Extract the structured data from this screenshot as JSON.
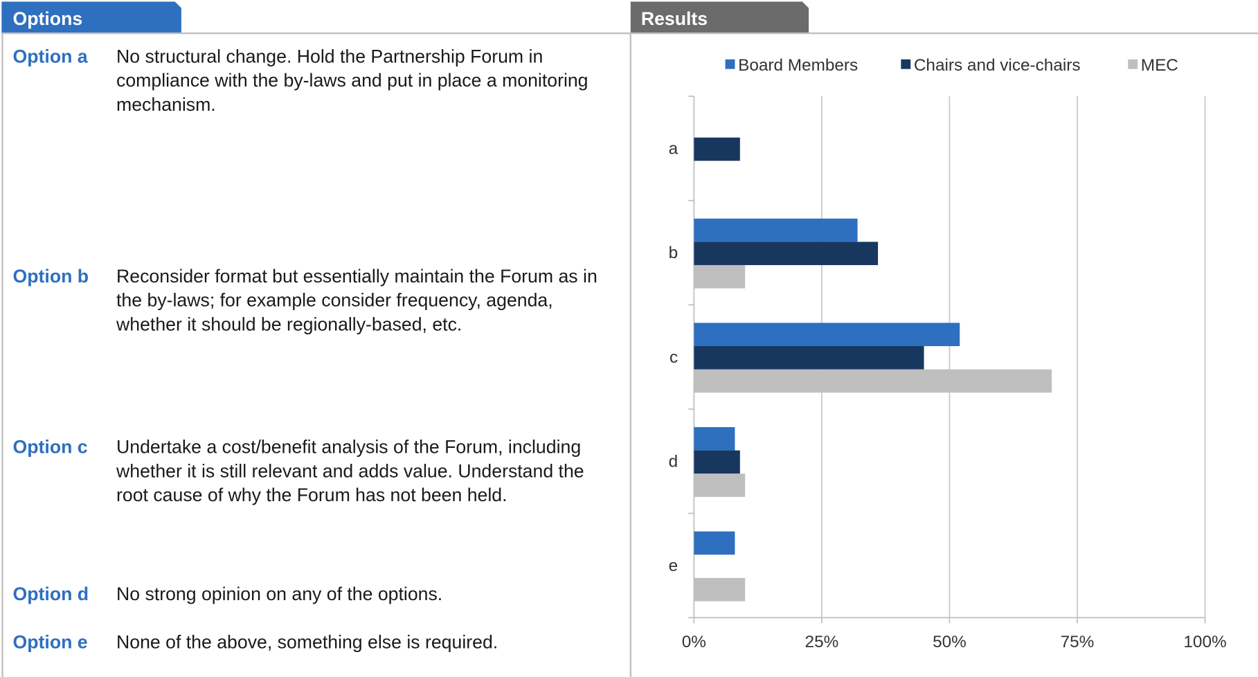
{
  "options_panel": {
    "title": "Options",
    "options": [
      {
        "label": "Option a",
        "text": "No structural change. Hold the Partnership Forum in compliance with the by-laws and put in place a monitoring mechanism."
      },
      {
        "label": "Option b",
        "text": "Reconsider format but essentially maintain the Forum as in the by-laws; for example consider frequency, agenda, whether it should be regionally-based, etc."
      },
      {
        "label": "Option c",
        "text": "Undertake a cost/benefit analysis of the Forum, including whether it is still relevant and adds value. Understand the root cause of why the Forum has not been held."
      },
      {
        "label": "Option d",
        "text": "No strong opinion on any of the options."
      },
      {
        "label": "Option e",
        "text": "None of the above, something else is required."
      }
    ]
  },
  "results_panel": {
    "title": "Results"
  },
  "chart_data": {
    "type": "hbar",
    "categories": [
      "a",
      "b",
      "c",
      "d",
      "e"
    ],
    "series": [
      {
        "name": "Board Members",
        "color": "#2e6fbf",
        "values": [
          0,
          32,
          52,
          8,
          8
        ]
      },
      {
        "name": "Chairs and vice-chairs",
        "color": "#17375e",
        "values": [
          9,
          36,
          45,
          9,
          0
        ]
      },
      {
        "name": "MEC",
        "color": "#bfbfbf",
        "values": [
          0,
          10,
          70,
          10,
          10
        ]
      }
    ],
    "xlim": [
      0,
      100
    ],
    "xticks": [
      {
        "value": 0,
        "label": "0%"
      },
      {
        "value": 25,
        "label": "25%"
      },
      {
        "value": 50,
        "label": "50%"
      },
      {
        "value": 75,
        "label": "75%"
      },
      {
        "value": 100,
        "label": "100%"
      }
    ],
    "grid": true,
    "legend": "top"
  }
}
